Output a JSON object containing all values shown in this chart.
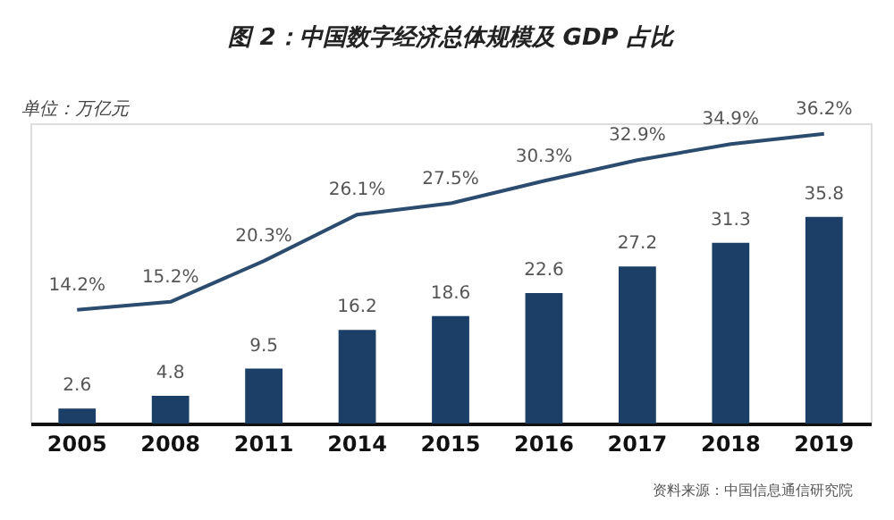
{
  "chart_data": {
    "type": "bar",
    "title": "图 2：中国数字经济总体规模及 GDP 占比",
    "ylabel": "单位：万亿元",
    "categories": [
      "2005",
      "2008",
      "2011",
      "2014",
      "2015",
      "2016",
      "2017",
      "2018",
      "2019"
    ],
    "series": [
      {
        "color": "#1b3f66",
        "values": [
          2.6,
          4.8,
          9.5,
          16.2,
          18.6,
          22.6,
          27.2,
          31.3,
          35.8
        ],
        "value_labels": [
          "2.6",
          "4.8",
          "9.5",
          "16.2",
          "18.6",
          "22.6",
          "27.2",
          "31.3",
          "35.8"
        ]
      },
      {
        "type": "line",
        "axis": "y2",
        "color": "#2b4c6e",
        "values": [
          14.2,
          15.2,
          20.3,
          26.1,
          27.5,
          30.3,
          32.9,
          34.9,
          36.2
        ],
        "value_labels": [
          "14.2%",
          "15.2%",
          "20.3%",
          "26.1%",
          "27.5%",
          "30.3%",
          "32.9%",
          "34.9%",
          "36.2%"
        ]
      }
    ],
    "ylim": [
      0,
      52
    ],
    "y2lim": [
      0,
      37.5
    ],
    "marker": "none",
    "grid": false,
    "annotations": [
      "资料来源：中国信息通信研究院"
    ]
  }
}
